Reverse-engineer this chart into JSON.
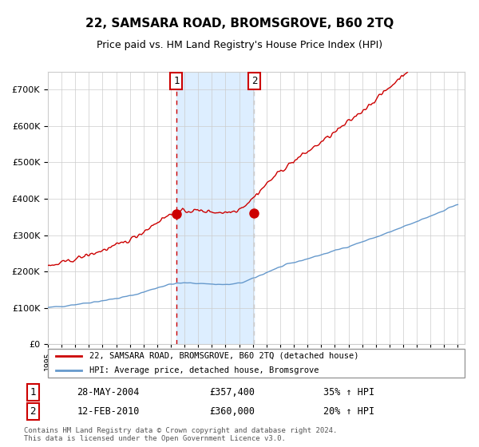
{
  "title": "22, SAMSARA ROAD, BROMSGROVE, B60 2TQ",
  "subtitle": "Price paid vs. HM Land Registry's House Price Index (HPI)",
  "legend_line1": "22, SAMSARA ROAD, BROMSGROVE, B60 2TQ (detached house)",
  "legend_line2": "HPI: Average price, detached house, Bromsgrove",
  "sale1_date": "28-MAY-2004",
  "sale1_price": 357400,
  "sale1_label": "35% ↑ HPI",
  "sale2_date": "12-FEB-2010",
  "sale2_price": 360000,
  "sale2_label": "20% ↑ HPI",
  "footnote": "Contains HM Land Registry data © Crown copyright and database right 2024.\nThis data is licensed under the Open Government Licence v3.0.",
  "red_color": "#cc0000",
  "blue_color": "#6699cc",
  "shade_color": "#ddeeff",
  "grid_color": "#cccccc",
  "background_color": "#ffffff",
  "ylim": [
    0,
    750000
  ],
  "sale1_x": 2004.4,
  "sale2_x": 2010.1
}
